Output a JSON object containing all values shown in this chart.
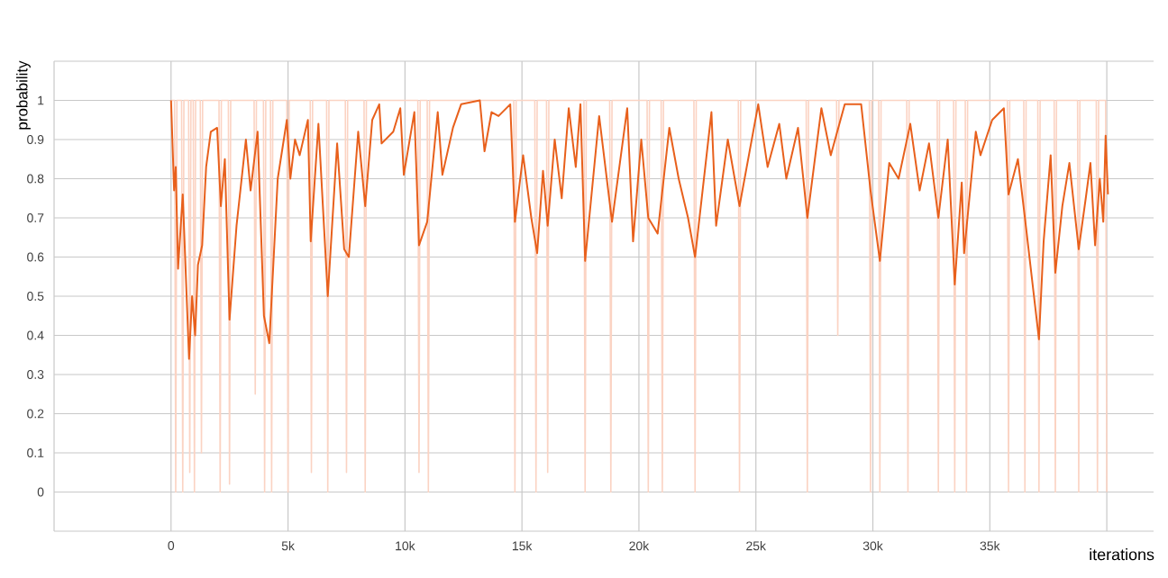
{
  "chart_data": {
    "type": "line",
    "xlabel": "iterations",
    "ylabel": "probability",
    "xlim": [
      -5000,
      42000
    ],
    "ylim": [
      -0.1,
      1.1
    ],
    "xticks": [
      {
        "value": -5000,
        "label": null
      },
      {
        "value": 0,
        "label": "0"
      },
      {
        "value": 5000,
        "label": "5k"
      },
      {
        "value": 10000,
        "label": "10k"
      },
      {
        "value": 15000,
        "label": "15k"
      },
      {
        "value": 20000,
        "label": "20k"
      },
      {
        "value": 25000,
        "label": "25k"
      },
      {
        "value": 30000,
        "label": "30k"
      },
      {
        "value": 35000,
        "label": "35k"
      },
      {
        "value": 40000,
        "label": null
      }
    ],
    "yticks": [
      {
        "value": -0.1,
        "label": null
      },
      0,
      0.1,
      0.2,
      0.3,
      0.4,
      0.5,
      0.6,
      0.7,
      0.8,
      0.9,
      1,
      {
        "value": 1.1,
        "label": null
      }
    ],
    "grid": true,
    "marker": "none",
    "line_style": "solid",
    "series": [
      {
        "color": "#fbd3c3",
        "x": [
          0,
          150,
          200,
          250,
          450,
          500,
          550,
          750,
          800,
          850,
          950,
          1000,
          1050,
          1250,
          1300,
          1350,
          2050,
          2100,
          2150,
          2450,
          2500,
          2550,
          3550,
          3600,
          3650,
          3950,
          4000,
          4050,
          4250,
          4300,
          4350,
          4950,
          5000,
          5050,
          5950,
          6000,
          6050,
          6650,
          6700,
          6750,
          7450,
          7500,
          7550,
          8250,
          8300,
          8350,
          10550,
          10600,
          10650,
          10950,
          11000,
          11050,
          14650,
          14700,
          14750,
          15550,
          15600,
          15650,
          16050,
          16100,
          16150,
          17650,
          17700,
          17750,
          18750,
          18800,
          18850,
          20350,
          20400,
          20450,
          20950,
          21000,
          21050,
          22350,
          22400,
          22450,
          24250,
          24300,
          24350,
          27150,
          27200,
          27250,
          28450,
          28500,
          28550,
          29850,
          29900,
          29950,
          30250,
          30300,
          30350,
          31450,
          31500,
          31550,
          32750,
          32800,
          32850,
          33450,
          33500,
          33550,
          33950,
          34000,
          34050,
          35750,
          35800,
          35850,
          36450,
          36500,
          36550,
          37050,
          37100,
          37150,
          37750,
          37800,
          37850,
          38750,
          38800,
          38850,
          39550,
          39600,
          39650,
          39950,
          40000
        ],
        "values": [
          1,
          1,
          0,
          1,
          1,
          0,
          1,
          1,
          0.05,
          1,
          1,
          0,
          1,
          1,
          0.1,
          1,
          1,
          0,
          1,
          1,
          0.02,
          1,
          1,
          0.25,
          1,
          1,
          0,
          1,
          1,
          0,
          1,
          1,
          0,
          1,
          1,
          0.05,
          1,
          1,
          0,
          1,
          1,
          0.05,
          1,
          1,
          0,
          1,
          1,
          0.05,
          1,
          1,
          0,
          1,
          1,
          0,
          1,
          1,
          0,
          1,
          1,
          0.05,
          1,
          1,
          0,
          1,
          1,
          0,
          1,
          1,
          0,
          1,
          1,
          0,
          1,
          1,
          0,
          1,
          1,
          0,
          1,
          1,
          0,
          1,
          1,
          0.4,
          1,
          1,
          0,
          1,
          1,
          0,
          1,
          1,
          0,
          1,
          1,
          0,
          1,
          1,
          0,
          1,
          1,
          0,
          1,
          1,
          0,
          1,
          1,
          0,
          1,
          1,
          0,
          1,
          1,
          0,
          1,
          1,
          0,
          1,
          1,
          0,
          1,
          1,
          0
        ]
      },
      {
        "color": "#e8601c",
        "x": [
          0,
          130,
          200,
          300,
          500,
          770,
          900,
          1030,
          1150,
          1330,
          1500,
          1700,
          1970,
          2130,
          2300,
          2500,
          2800,
          3200,
          3400,
          3700,
          3970,
          4200,
          4560,
          4950,
          5100,
          5300,
          5500,
          5850,
          5970,
          6300,
          6700,
          7100,
          7400,
          7600,
          8000,
          8300,
          8600,
          8900,
          9000,
          9500,
          9800,
          9950,
          10400,
          10600,
          10950,
          11400,
          11600,
          12050,
          12400,
          13200,
          13400,
          13700,
          14000,
          14500,
          14700,
          15050,
          15400,
          15650,
          15900,
          16100,
          16400,
          16700,
          17000,
          17300,
          17500,
          17700,
          18300,
          18850,
          19500,
          19750,
          20100,
          20400,
          20800,
          21300,
          21700,
          22100,
          22400,
          23100,
          23300,
          23800,
          24300,
          25100,
          25500,
          26000,
          26300,
          26800,
          27200,
          27800,
          28200,
          28800,
          29500,
          29900,
          30300,
          30700,
          31100,
          31600,
          32000,
          32400,
          32800,
          33200,
          33500,
          33800,
          33900,
          34400,
          34600,
          35100,
          35600,
          35800,
          36200,
          36500,
          37100,
          37300,
          37600,
          37800,
          38100,
          38400,
          38800,
          39100,
          39300,
          39500,
          39700,
          39850,
          39950,
          40050
        ],
        "values": [
          1,
          0.77,
          0.83,
          0.57,
          0.76,
          0.34,
          0.5,
          0.4,
          0.58,
          0.63,
          0.83,
          0.92,
          0.93,
          0.73,
          0.85,
          0.44,
          0.68,
          0.9,
          0.77,
          0.92,
          0.45,
          0.38,
          0.8,
          0.95,
          0.8,
          0.9,
          0.86,
          0.95,
          0.64,
          0.94,
          0.5,
          0.89,
          0.62,
          0.6,
          0.92,
          0.73,
          0.95,
          0.99,
          0.89,
          0.92,
          0.98,
          0.81,
          0.97,
          0.63,
          0.69,
          0.97,
          0.81,
          0.93,
          0.99,
          1,
          0.87,
          0.97,
          0.96,
          0.99,
          0.69,
          0.86,
          0.7,
          0.61,
          0.82,
          0.68,
          0.9,
          0.75,
          0.98,
          0.83,
          0.99,
          0.59,
          0.96,
          0.69,
          0.98,
          0.64,
          0.9,
          0.7,
          0.66,
          0.93,
          0.8,
          0.7,
          0.6,
          0.97,
          0.68,
          0.9,
          0.73,
          0.99,
          0.83,
          0.94,
          0.8,
          0.93,
          0.7,
          0.98,
          0.86,
          0.99,
          0.99,
          0.77,
          0.59,
          0.84,
          0.8,
          0.94,
          0.77,
          0.89,
          0.7,
          0.9,
          0.53,
          0.79,
          0.61,
          0.92,
          0.86,
          0.95,
          0.98,
          0.76,
          0.85,
          0.7,
          0.39,
          0.64,
          0.86,
          0.56,
          0.73,
          0.84,
          0.62,
          0.75,
          0.84,
          0.63,
          0.8,
          0.69,
          0.91,
          0.76
        ]
      }
    ]
  }
}
